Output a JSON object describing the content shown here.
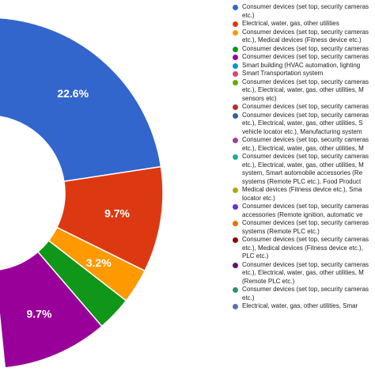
{
  "chart_data": {
    "type": "pie",
    "series": [
      {
        "label": "Consumer devices (set top, security cameras etc.)",
        "value": 22.6,
        "color": "#3366cc",
        "value_label": "22.6%"
      },
      {
        "label": "Electrical, water, gas, other utilities",
        "value": 9.7,
        "color": "#dc3912",
        "value_label": "9.7%"
      },
      {
        "label": "Consumer devices (set top, security cameras etc.), Medical devices (Fitness device etc.)",
        "value": 3.2,
        "color": "#ff9900",
        "value_label": "3.2%"
      },
      {
        "label": "Consumer devices (set top, security cameras etc.)",
        "value": 3.2,
        "color": "#109618",
        "value_label": ""
      },
      {
        "label": "Consumer devices (set top, security cameras etc.)",
        "value": 9.7,
        "color": "#990099",
        "value_label": "9.7%"
      }
    ]
  },
  "legend": [
    {
      "color": "#3366cc",
      "lines": [
        "Consumer devices (set top, security cameras",
        "etc.)"
      ]
    },
    {
      "color": "#dc3912",
      "lines": [
        "Electrical, water, gas, other utilities"
      ]
    },
    {
      "color": "#ff9900",
      "lines": [
        "Consumer devices (set top, security cameras",
        "etc.), Medical devices (Fitness device etc.)"
      ]
    },
    {
      "color": "#109618",
      "lines": [
        "Consumer devices (set top, security cameras"
      ]
    },
    {
      "color": "#990099",
      "lines": [
        "Consumer devices (set top, security cameras"
      ]
    },
    {
      "color": "#0099c6",
      "lines": [
        "Smart building (HVAC automation, lighting"
      ]
    },
    {
      "color": "#dd4477",
      "lines": [
        "Smart Transportation system"
      ]
    },
    {
      "color": "#66aa00",
      "lines": [
        "Consumer devices (set top, security cameras",
        "etc.), Electrical, water, gas, other utilities, M",
        "sensors etc)"
      ]
    },
    {
      "color": "#b82e2e",
      "lines": [
        "Consumer devices (set top, security cameras"
      ]
    },
    {
      "color": "#316395",
      "lines": [
        "Consumer devices (set top, security cameras",
        "etc.), Electrical, water, gas, other utilities, S",
        "vehicle locator etc.), Manufacturing system"
      ]
    },
    {
      "color": "#994499",
      "lines": [
        "Consumer devices (set top, security cameras",
        "etc.), Electrical, water, gas, other utilities, M"
      ]
    },
    {
      "color": "#22aa99",
      "lines": [
        "Consumer devices (set top, security cameras",
        "etc.), Electrical, water, gas, other utilities, M",
        "system, Smart automobile accessories (Re",
        "systems (Remote PLC etc.), Food Product"
      ]
    },
    {
      "color": "#aaaa11",
      "lines": [
        "Medical devices (Fitness device etc.), Sma",
        "locator etc.)"
      ]
    },
    {
      "color": "#6633cc",
      "lines": [
        "Consumer devices (set top, security cameras",
        "accessories (Remote ignition, automatic ve"
      ]
    },
    {
      "color": "#e67300",
      "lines": [
        "Consumer devices (set top, security cameras",
        "systems (Remote PLC etc.)"
      ]
    },
    {
      "color": "#8b0707",
      "lines": [
        "Consumer devices (set top, security cameras",
        "etc.), Medical devices (Fitness device etc.),",
        "PLC etc.)"
      ]
    },
    {
      "color": "#651067",
      "lines": [
        "Consumer devices (set top, security cameras",
        "etc.), Electrical, water, gas, other utilities, M",
        "(Remote PLC etc.)"
      ]
    },
    {
      "color": "#329262",
      "lines": [
        "Consumer devices (set top, security cameras",
        "etc.)"
      ]
    },
    {
      "color": "#5574a6",
      "lines": [
        "Electrical, water, gas, other utilities, Smar"
      ]
    }
  ]
}
